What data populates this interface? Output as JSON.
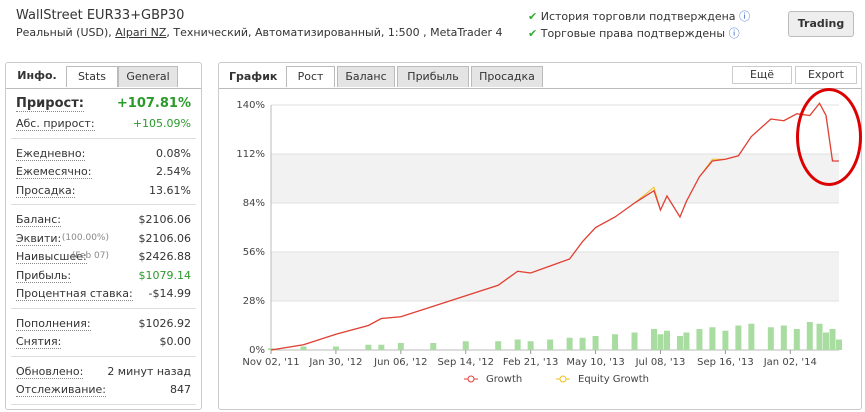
{
  "header": {
    "title": "WallStreet EUR33+GBP30",
    "subtitle_start": "Реальный (USD), ",
    "broker": "Alpari NZ",
    "subtitle_end": ", Технический, Автоматизированный, 1:500 , MetaTrader 4",
    "checks": [
      "История торговли подтверждена",
      "Торговые права подтверждены"
    ],
    "button": "Trading"
  },
  "info": {
    "tabs": [
      "Инфо.",
      "Stats",
      "General"
    ],
    "groups": [
      [
        {
          "label": "Прирост:",
          "value": "+107.81%"
        },
        {
          "label": "Абс. прирост:",
          "value": "+105.09%"
        }
      ],
      [
        {
          "label": "Ежедневно:",
          "value": "0.08%"
        },
        {
          "label": "Ежемесячно:",
          "value": "2.54%"
        },
        {
          "label": "Просадка:",
          "value": "13.61%"
        }
      ],
      [
        {
          "label": "Баланс:",
          "value": "$2106.06"
        },
        {
          "label": "Эквити:",
          "note": "(100.00%)",
          "value": "$2106.06"
        },
        {
          "label": "Наивысшее:",
          "note": "(Feb 07)",
          "value": "$2426.88"
        },
        {
          "label": "Прибыль:",
          "value": "$1079.14"
        },
        {
          "label": "Процентная ставка:",
          "value": "-$14.99"
        }
      ],
      [
        {
          "label": "Пополнения:",
          "value": "$1026.92"
        },
        {
          "label": "Снятия:",
          "value": "$0.00"
        }
      ],
      [
        {
          "label": "Обновлено:",
          "value": "2 минут назад"
        },
        {
          "label": "Отслеживание:",
          "value": "847"
        }
      ]
    ]
  },
  "graph": {
    "title": "График",
    "tabs": [
      "Рост",
      "Баланс",
      "Прибыль",
      "Просадка"
    ],
    "menus": [
      "Ещё",
      "Export"
    ]
  },
  "chart_data": {
    "type": "line",
    "x": [
      0,
      0.5,
      1,
      1.5,
      1.7,
      2,
      2.5,
      3,
      3.5,
      3.8,
      4,
      4.3,
      4.6,
      4.8,
      5,
      5.3,
      5.6,
      5.9,
      6,
      6.1,
      6.3,
      6.4,
      6.6,
      6.8,
      7,
      7.2,
      7.4,
      7.7,
      7.9,
      8.1,
      8.3,
      8.45,
      8.55,
      8.65,
      8.75
    ],
    "series": [
      {
        "name": "Growth",
        "color": "#e0403a",
        "values": [
          0,
          3,
          9,
          14,
          18,
          19,
          25,
          31,
          37,
          45,
          44,
          48,
          52,
          62,
          70,
          76,
          84,
          91,
          80,
          88,
          76,
          85,
          99,
          108,
          109,
          111,
          122,
          132,
          131,
          135,
          134,
          141,
          134,
          108,
          108
        ]
      },
      {
        "name": "Equity Growth",
        "color": "#f0c020",
        "values": [
          0,
          3,
          9,
          14,
          18,
          19,
          25,
          31,
          37,
          45,
          44,
          48,
          52,
          62,
          70,
          76,
          84,
          93,
          80,
          88,
          76,
          85,
          99,
          109,
          109,
          111,
          122,
          132,
          131,
          135,
          134,
          141,
          134,
          108,
          108
        ]
      }
    ],
    "bars": {
      "color": "#a8dca0",
      "values": [
        1,
        2,
        2,
        3,
        3,
        4,
        4,
        5,
        5,
        6,
        5,
        6,
        7,
        7,
        8,
        9,
        10,
        12,
        9,
        11,
        8,
        10,
        12,
        13,
        11,
        14,
        15,
        13,
        14,
        12,
        16,
        15,
        10,
        12,
        6
      ]
    },
    "xlim": [
      0,
      8.75
    ],
    "xticks": [
      {
        "value": 0,
        "label": "Nov 02, '11"
      },
      {
        "value": 1,
        "label": "Jan 30, '12"
      },
      {
        "value": 2,
        "label": "Jun 06, '12"
      },
      {
        "value": 3,
        "label": "Sep 14, '12"
      },
      {
        "value": 4,
        "label": "Feb 21, '13"
      },
      {
        "value": 5,
        "label": "May 10, '13"
      },
      {
        "value": 6,
        "label": "Jul 08, '13"
      },
      {
        "value": 7,
        "label": "Sep 16, '13"
      },
      {
        "value": 8,
        "label": "Jan 02, '14"
      }
    ],
    "ylim": [
      0,
      140
    ],
    "yticks": [
      {
        "value": 0,
        "label": "0%"
      },
      {
        "value": 28,
        "label": "28%"
      },
      {
        "value": 56,
        "label": "56%"
      },
      {
        "value": 84,
        "label": "84%"
      },
      {
        "value": 112,
        "label": "112%"
      },
      {
        "value": 140,
        "label": "140%"
      }
    ],
    "grid": true
  }
}
